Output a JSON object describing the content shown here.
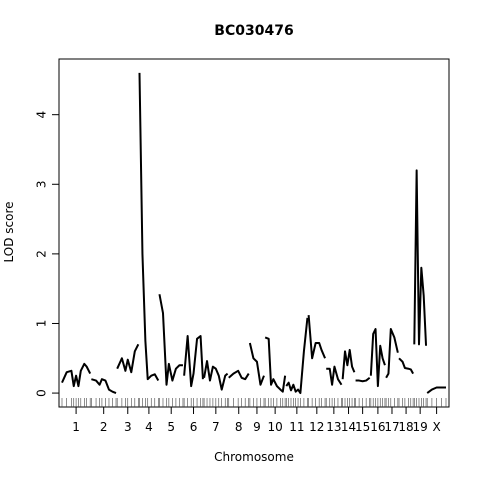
{
  "chart_data": {
    "type": "line",
    "title": "BC030476",
    "xlabel": "Chromosome",
    "ylabel": "LOD score",
    "ylim": [
      -0.2,
      4.8
    ],
    "yticks": [
      0,
      1,
      2,
      3,
      4
    ],
    "x_axis": "genome position (cM), chromosomes laid end to end",
    "grid": false,
    "legend": "none",
    "line_color": "#000000",
    "chromosomes": [
      {
        "name": "1",
        "x": [
          0,
          8,
          16,
          20,
          24,
          28,
          32,
          38,
          42,
          48
        ],
        "lod": [
          0.15,
          0.3,
          0.32,
          0.1,
          0.25,
          0.1,
          0.32,
          0.42,
          0.38,
          0.28
        ]
      },
      {
        "name": "2",
        "x": [
          0,
          8,
          14,
          18,
          24,
          30,
          36,
          42
        ],
        "lod": [
          0.2,
          0.18,
          0.12,
          0.2,
          0.18,
          0.05,
          0.02,
          0.0
        ]
      },
      {
        "name": "3",
        "x": [
          0,
          8,
          14,
          18,
          24,
          30,
          36
        ],
        "lod": [
          0.35,
          0.5,
          0.32,
          0.48,
          0.3,
          0.6,
          0.7
        ]
      },
      {
        "name": "4",
        "x": [
          0,
          5,
          10,
          14,
          20,
          26,
          32
        ],
        "lod": [
          4.6,
          2.0,
          0.75,
          0.2,
          0.25,
          0.27,
          0.18
        ]
      },
      {
        "name": "5",
        "x": [
          0,
          6,
          12,
          16,
          22,
          28,
          34,
          40
        ],
        "lod": [
          1.42,
          1.15,
          0.12,
          0.42,
          0.18,
          0.35,
          0.4,
          0.4
        ]
      },
      {
        "name": "6",
        "x": [
          0,
          6,
          12,
          16,
          22,
          28,
          32
        ],
        "lod": [
          0.25,
          0.82,
          0.1,
          0.28,
          0.78,
          0.82,
          0.2
        ]
      },
      {
        "name": "7",
        "x": [
          0,
          5,
          10,
          15,
          20,
          25,
          30,
          36,
          40
        ],
        "lod": [
          0.22,
          0.46,
          0.18,
          0.38,
          0.35,
          0.25,
          0.05,
          0.25,
          0.28
        ]
      },
      {
        "name": "8",
        "x": [
          0,
          8,
          16,
          22,
          28,
          34
        ],
        "lod": [
          0.22,
          0.28,
          0.32,
          0.22,
          0.2,
          0.28
        ]
      },
      {
        "name": "9",
        "x": [
          0,
          6,
          12,
          18,
          24
        ],
        "lod": [
          0.72,
          0.5,
          0.45,
          0.12,
          0.25
        ]
      },
      {
        "name": "10",
        "x": [
          0,
          6,
          10,
          14,
          20,
          26,
          30,
          34
        ],
        "lod": [
          0.8,
          0.78,
          0.12,
          0.2,
          0.1,
          0.05,
          0.02,
          0.25
        ]
      },
      {
        "name": "11",
        "x": [
          0,
          4,
          8,
          12,
          16,
          20,
          24,
          30,
          36
        ],
        "lod": [
          0.1,
          0.15,
          0.04,
          0.12,
          0.02,
          0.05,
          0.0,
          0.6,
          1.08
        ]
      },
      {
        "name": "12",
        "x": [
          0,
          6,
          12,
          18,
          22,
          28
        ],
        "lod": [
          1.12,
          0.5,
          0.72,
          0.72,
          0.62,
          0.5
        ]
      },
      {
        "name": "13",
        "x": [
          0,
          6,
          10,
          14,
          20,
          26
        ],
        "lod": [
          0.35,
          0.35,
          0.12,
          0.38,
          0.2,
          0.12
        ]
      },
      {
        "name": "14",
        "x": [
          0,
          4,
          8,
          12,
          16,
          20
        ],
        "lod": [
          0.2,
          0.6,
          0.4,
          0.62,
          0.38,
          0.3
        ]
      },
      {
        "name": "15",
        "x": [
          0,
          6,
          12,
          18,
          24
        ],
        "lod": [
          0.18,
          0.18,
          0.17,
          0.18,
          0.22
        ]
      },
      {
        "name": "16",
        "x": [
          0,
          4,
          8,
          12,
          16,
          20,
          24
        ],
        "lod": [
          0.25,
          0.85,
          0.92,
          0.1,
          0.68,
          0.5,
          0.4
        ]
      },
      {
        "name": "17",
        "x": [
          0,
          4,
          8,
          14,
          20
        ],
        "lod": [
          0.22,
          0.28,
          0.92,
          0.8,
          0.58
        ]
      },
      {
        "name": "18",
        "x": [
          0,
          6,
          10,
          16,
          20,
          24
        ],
        "lod": [
          0.5,
          0.45,
          0.36,
          0.35,
          0.34,
          0.28
        ]
      },
      {
        "name": "19",
        "x": [
          0,
          4,
          8,
          12,
          16,
          20
        ],
        "lod": [
          0.7,
          3.2,
          0.7,
          1.8,
          1.4,
          0.68
        ]
      },
      {
        "name": "X",
        "x": [
          0,
          8,
          16,
          24,
          32
        ],
        "lod": [
          0.0,
          0.05,
          0.08,
          0.08,
          0.08
        ]
      }
    ]
  }
}
